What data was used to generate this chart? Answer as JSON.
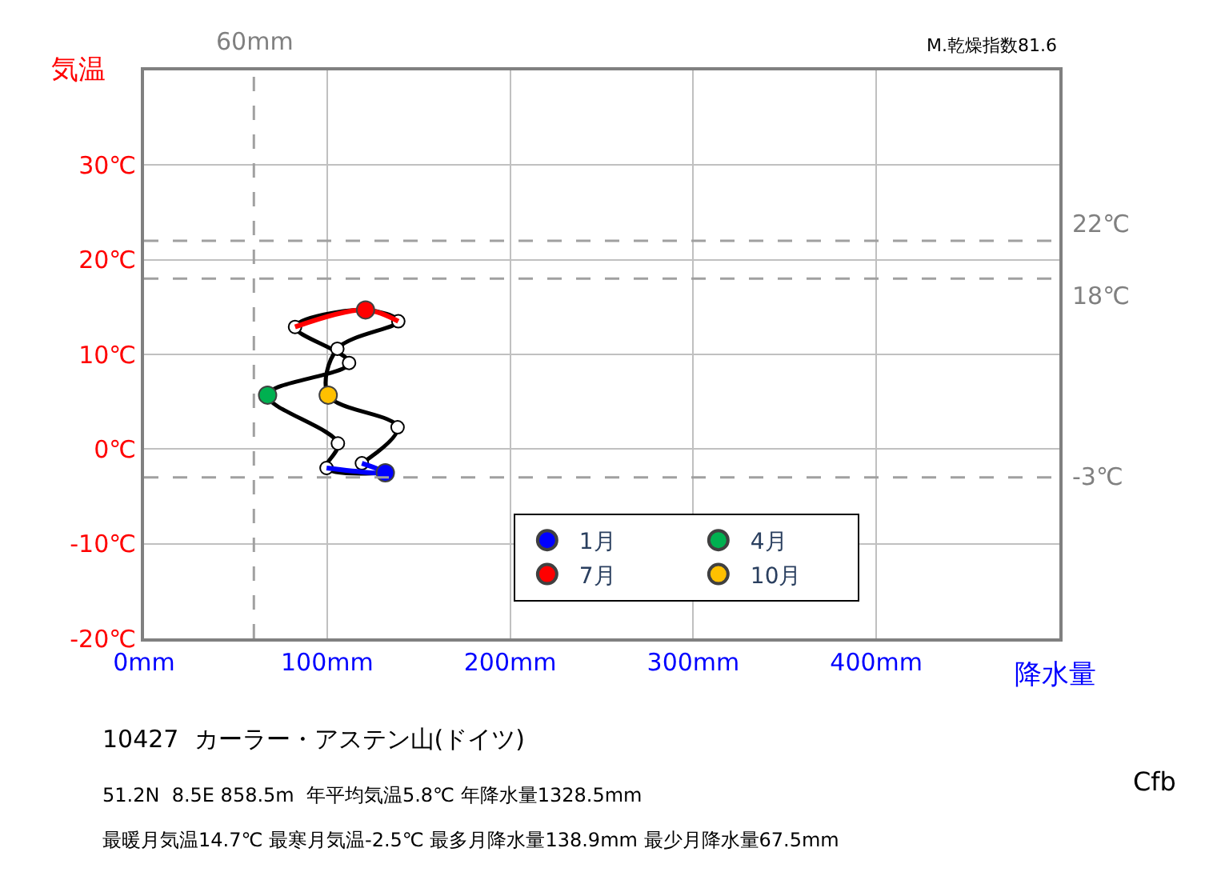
{
  "chart_data": {
    "type": "line",
    "xlabel": "降水量",
    "ylabel": "気温",
    "xlim": [
      0,
      500
    ],
    "ylim": [
      -20,
      40
    ],
    "xticks": [
      {
        "value": 0,
        "label": "0mm"
      },
      {
        "value": 100,
        "label": "100mm"
      },
      {
        "value": 200,
        "label": "200mm"
      },
      {
        "value": 300,
        "label": "300mm"
      },
      {
        "value": 400,
        "label": "400mm"
      },
      {
        "value": 500,
        "label": null
      }
    ],
    "yticks": [
      {
        "value": -20,
        "label": "-20℃"
      },
      {
        "value": -10,
        "label": "-10℃"
      },
      {
        "value": 0,
        "label": "0℃"
      },
      {
        "value": 10,
        "label": "10℃"
      },
      {
        "value": 20,
        "label": "20℃"
      },
      {
        "value": 30,
        "label": "30℃"
      },
      {
        "value": 40,
        "label": null
      }
    ],
    "grid": true,
    "legend": "bottom right",
    "series": [
      {
        "color": "#000000",
        "marker": "circle",
        "x": [
          131.8,
          99.7,
          105.9,
          67.5,
          112,
          82.5,
          121,
          138.9,
          105.6,
          100.6,
          138.5,
          119
        ],
        "values": [
          -2.5,
          -2.0,
          0.6,
          5.7,
          9.1,
          12.9,
          14.7,
          13.5,
          10.6,
          5.7,
          2.3,
          -1.5
        ]
      },
      {
        "color": "#0000ff",
        "marker": "none",
        "x": [
          119,
          131.8,
          99.7
        ],
        "values": [
          -1.5,
          -2.5,
          -2.0
        ]
      },
      {
        "color": "#ff0000",
        "marker": "none",
        "x": [
          82.5,
          121,
          138.9
        ],
        "values": [
          12.9,
          14.7,
          13.5
        ]
      },
      {
        "type": "scatter",
        "name": "1月",
        "color": "#0000ff",
        "marker": "circle",
        "x": [
          131.8
        ],
        "values": [
          -2.5
        ]
      },
      {
        "type": "scatter",
        "name": "4月",
        "color": "#00b050",
        "marker": "circle",
        "x": [
          67.5
        ],
        "values": [
          5.7
        ]
      },
      {
        "type": "scatter",
        "name": "7月",
        "color": "#ff0000",
        "marker": "circle",
        "x": [
          121
        ],
        "values": [
          14.7
        ]
      },
      {
        "type": "scatter",
        "name": "10月",
        "color": "#ffc000",
        "marker": "circle",
        "x": [
          100.6
        ],
        "values": [
          5.7
        ]
      }
    ],
    "ref_lines": [
      {
        "axis": "y",
        "value": 22,
        "label": "22℃",
        "color": "#a0a0a0",
        "line_style": "dashed"
      },
      {
        "axis": "y",
        "value": 18,
        "label": "18℃",
        "color": "#a0a0a0",
        "line_style": "dashed"
      },
      {
        "axis": "y",
        "value": -3,
        "label": "-3℃",
        "color": "#a0a0a0",
        "line_style": "dashed"
      },
      {
        "axis": "x",
        "value": 60,
        "label": "60mm",
        "color": "#a0a0a0",
        "line_style": "dashed"
      }
    ],
    "annotations": [
      "M.乾燥指数81.6",
      "10427  カーラー・アステン山(ドイツ)",
      "51.2N  8.5E 858.5m  年平均気温5.8℃ 年降水量1328.5mm",
      "最暖月気温14.7℃ 最寒月気温-2.5℃ 最多月降水量138.9mm 最少月降水量67.5mm",
      "Cfb"
    ]
  }
}
